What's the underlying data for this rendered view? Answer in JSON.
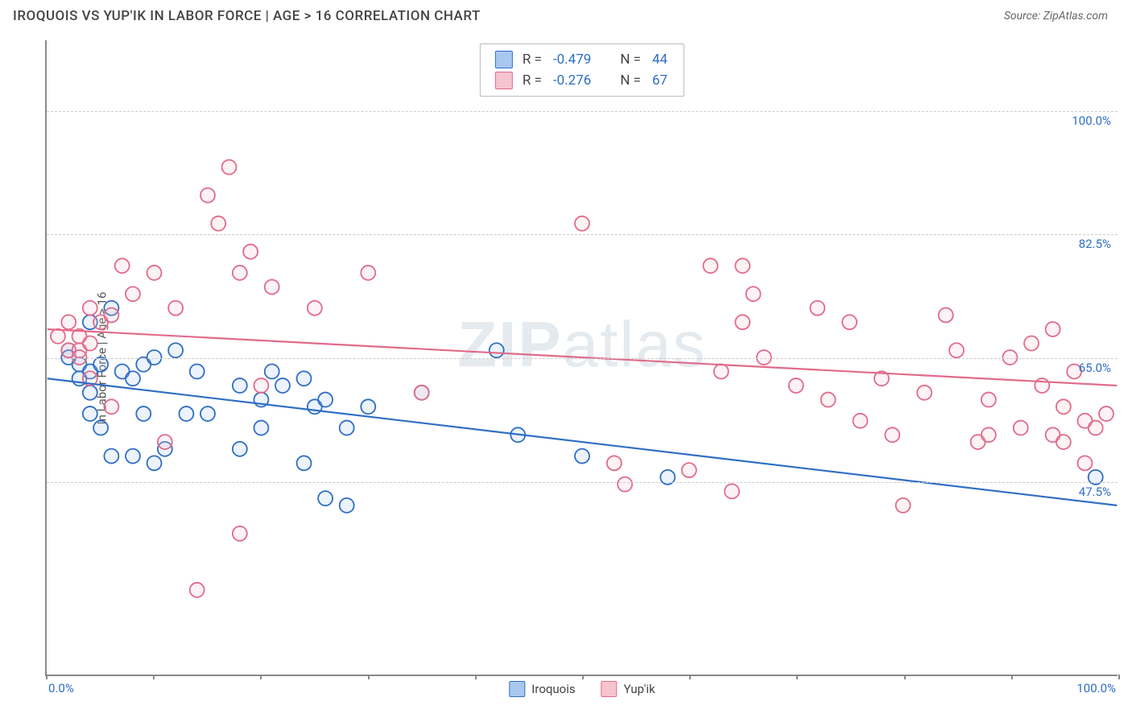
{
  "header": {
    "title": "IROQUOIS VS YUP'IK IN LABOR FORCE | AGE > 16 CORRELATION CHART",
    "source": "Source: ZipAtlas.com"
  },
  "chart": {
    "type": "scatter",
    "ylabel": "In Labor Force | Age > 16",
    "watermark_bold": "ZIP",
    "watermark_light": "atlas",
    "xlim": [
      0,
      100
    ],
    "ylim": [
      20,
      110
    ],
    "x_tick_step": 10,
    "x_min_label": "0.0%",
    "x_max_label": "100.0%",
    "y_gridlines": [
      {
        "value": 47.5,
        "label": "47.5%"
      },
      {
        "value": 65.0,
        "label": "65.0%"
      },
      {
        "value": 82.5,
        "label": "82.5%"
      },
      {
        "value": 100.0,
        "label": "100.0%"
      }
    ],
    "marker_radius": 9,
    "marker_stroke_width": 1.8,
    "marker_fill_opacity": 0.22,
    "trend_line_width": 2.2,
    "series": [
      {
        "name": "Iroquois",
        "color_fill": "#a9c8f0",
        "color_stroke": "#2f6ec4",
        "stats": {
          "R": "-0.479",
          "N": "44"
        },
        "trend": {
          "x0": 0,
          "y0": 62,
          "x1": 100,
          "y1": 44
        },
        "points": [
          [
            2,
            66
          ],
          [
            2,
            65
          ],
          [
            3,
            64
          ],
          [
            3,
            62
          ],
          [
            4,
            70
          ],
          [
            4,
            63
          ],
          [
            4,
            60
          ],
          [
            4,
            57
          ],
          [
            5,
            64
          ],
          [
            5,
            55
          ],
          [
            6,
            72
          ],
          [
            6,
            51
          ],
          [
            7,
            63
          ],
          [
            8,
            62
          ],
          [
            8,
            51
          ],
          [
            9,
            64
          ],
          [
            9,
            57
          ],
          [
            10,
            65
          ],
          [
            10,
            50
          ],
          [
            11,
            52
          ],
          [
            12,
            66
          ],
          [
            13,
            57
          ],
          [
            14,
            63
          ],
          [
            15,
            57
          ],
          [
            18,
            61
          ],
          [
            18,
            52
          ],
          [
            20,
            59
          ],
          [
            20,
            55
          ],
          [
            21,
            63
          ],
          [
            22,
            61
          ],
          [
            24,
            62
          ],
          [
            24,
            50
          ],
          [
            25,
            58
          ],
          [
            26,
            59
          ],
          [
            26,
            45
          ],
          [
            28,
            55
          ],
          [
            28,
            44
          ],
          [
            30,
            58
          ],
          [
            35,
            60
          ],
          [
            42,
            66
          ],
          [
            44,
            54
          ],
          [
            50,
            51
          ],
          [
            58,
            48
          ],
          [
            98,
            48
          ]
        ]
      },
      {
        "name": "Yup'ik",
        "color_fill": "#f6c3d0",
        "color_stroke": "#e06b8a",
        "stats": {
          "R": "-0.276",
          "N": "67"
        },
        "trend": {
          "x0": 0,
          "y0": 69,
          "x1": 100,
          "y1": 61
        },
        "points": [
          [
            1,
            68
          ],
          [
            2,
            70
          ],
          [
            2,
            66
          ],
          [
            3,
            68
          ],
          [
            3,
            66
          ],
          [
            3,
            65
          ],
          [
            4,
            72
          ],
          [
            4,
            67
          ],
          [
            4,
            62
          ],
          [
            5,
            70
          ],
          [
            6,
            71
          ],
          [
            6,
            58
          ],
          [
            7,
            78
          ],
          [
            8,
            74
          ],
          [
            10,
            77
          ],
          [
            11,
            53
          ],
          [
            12,
            72
          ],
          [
            14,
            32
          ],
          [
            15,
            88
          ],
          [
            16,
            84
          ],
          [
            17,
            92
          ],
          [
            18,
            77
          ],
          [
            18,
            40
          ],
          [
            19,
            80
          ],
          [
            20,
            61
          ],
          [
            21,
            75
          ],
          [
            25,
            72
          ],
          [
            30,
            77
          ],
          [
            35,
            60
          ],
          [
            50,
            84
          ],
          [
            53,
            50
          ],
          [
            54,
            47
          ],
          [
            60,
            49
          ],
          [
            62,
            78
          ],
          [
            63,
            63
          ],
          [
            64,
            46
          ],
          [
            65,
            70
          ],
          [
            65,
            78
          ],
          [
            66,
            74
          ],
          [
            67,
            65
          ],
          [
            70,
            61
          ],
          [
            72,
            72
          ],
          [
            73,
            59
          ],
          [
            75,
            70
          ],
          [
            76,
            56
          ],
          [
            78,
            62
          ],
          [
            79,
            54
          ],
          [
            80,
            44
          ],
          [
            82,
            60
          ],
          [
            84,
            71
          ],
          [
            85,
            66
          ],
          [
            87,
            53
          ],
          [
            88,
            59
          ],
          [
            88,
            54
          ],
          [
            90,
            65
          ],
          [
            91,
            55
          ],
          [
            92,
            67
          ],
          [
            93,
            61
          ],
          [
            94,
            69
          ],
          [
            94,
            54
          ],
          [
            95,
            58
          ],
          [
            95,
            53
          ],
          [
            96,
            63
          ],
          [
            97,
            56
          ],
          [
            97,
            50
          ],
          [
            98,
            55
          ],
          [
            99,
            57
          ]
        ]
      }
    ],
    "stat_box": {
      "r_label": "R =",
      "n_label": "N ="
    },
    "bottom_legend_labels": [
      "Iroquois",
      "Yup'ik"
    ]
  }
}
